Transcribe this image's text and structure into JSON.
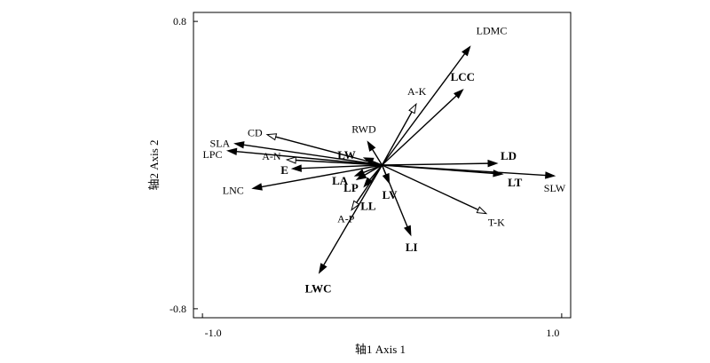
{
  "chart_data": {
    "type": "biplot",
    "xlabel": "轴1 Axis 1",
    "ylabel": "轴2 Axis 2",
    "xlim": [
      -1.05,
      1.05
    ],
    "ylim": [
      -0.85,
      0.85
    ],
    "x_ticks": [
      {
        "value": -1.0,
        "label": "-1.0"
      },
      {
        "value": 1.0,
        "label": "1.0"
      }
    ],
    "y_ticks": [
      {
        "value": 0.8,
        "label": "0.8"
      },
      {
        "value": -0.8,
        "label": "-0.8"
      }
    ],
    "grid": false,
    "vectors": [
      {
        "name": "LDMC",
        "x": 0.49,
        "y": 0.66,
        "head": "filled",
        "bold": false
      },
      {
        "name": "LCC",
        "x": 0.45,
        "y": 0.42,
        "head": "filled",
        "bold": true
      },
      {
        "name": "A-K",
        "x": 0.19,
        "y": 0.34,
        "head": "open",
        "bold": false
      },
      {
        "name": "LD",
        "x": 0.64,
        "y": 0.01,
        "head": "filled",
        "bold": true
      },
      {
        "name": "LT",
        "x": 0.67,
        "y": -0.05,
        "head": "filled",
        "bold": true
      },
      {
        "name": "SLW",
        "x": 0.96,
        "y": -0.06,
        "head": "filled",
        "bold": false
      },
      {
        "name": "T-K",
        "x": 0.58,
        "y": -0.27,
        "head": "open",
        "bold": false
      },
      {
        "name": "LI",
        "x": 0.16,
        "y": -0.39,
        "head": "filled",
        "bold": true
      },
      {
        "name": "LV",
        "x": 0.04,
        "y": -0.1,
        "head": "filled",
        "bold": true
      },
      {
        "name": "LL",
        "x": -0.1,
        "y": -0.12,
        "head": "filled",
        "bold": true
      },
      {
        "name": "A-P",
        "x": -0.17,
        "y": -0.25,
        "head": "open",
        "bold": false
      },
      {
        "name": "LWC",
        "x": -0.35,
        "y": -0.6,
        "head": "filled",
        "bold": true
      },
      {
        "name": "LP",
        "x": -0.14,
        "y": -0.08,
        "head": "filled",
        "bold": true
      },
      {
        "name": "LA",
        "x": -0.15,
        "y": -0.06,
        "head": "filled",
        "bold": true
      },
      {
        "name": "RWD",
        "x": -0.08,
        "y": 0.13,
        "head": "filled",
        "bold": false
      },
      {
        "name": "LW",
        "x": -0.1,
        "y": 0.04,
        "head": "filled",
        "bold": true
      },
      {
        "name": "CD",
        "x": -0.64,
        "y": 0.17,
        "head": "open",
        "bold": false
      },
      {
        "name": "SLA",
        "x": -0.82,
        "y": 0.12,
        "head": "filled",
        "bold": false
      },
      {
        "name": "LPC",
        "x": -0.86,
        "y": 0.08,
        "head": "filled",
        "bold": false
      },
      {
        "name": "A-N",
        "x": -0.53,
        "y": 0.03,
        "head": "open",
        "bold": false
      },
      {
        "name": "E",
        "x": -0.5,
        "y": -0.02,
        "head": "filled",
        "bold": true
      },
      {
        "name": "LNC",
        "x": -0.72,
        "y": -0.13,
        "head": "filled",
        "bold": false
      }
    ]
  }
}
